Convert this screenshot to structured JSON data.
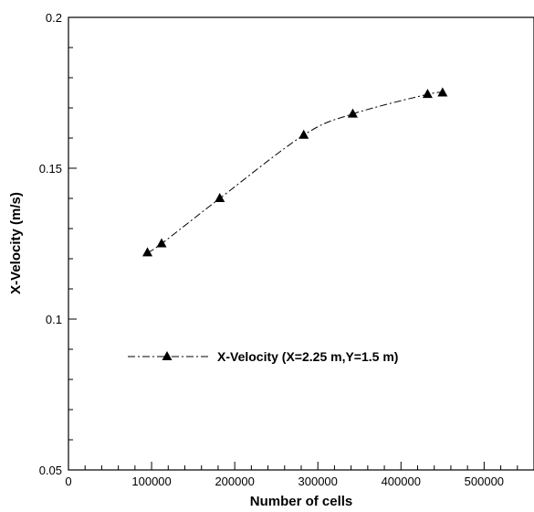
{
  "chart_data": {
    "type": "line",
    "title": "",
    "xlabel": "Number of cells",
    "ylabel": "X-Velocity (m/s)",
    "xlim": [
      0,
      560000
    ],
    "ylim": [
      0.05,
      0.2
    ],
    "x_ticks": [
      0,
      100000,
      200000,
      300000,
      400000,
      500000
    ],
    "x_tick_labels": [
      "0",
      "100000",
      "200000",
      "300000",
      "400000",
      "500000"
    ],
    "y_ticks": [
      0.05,
      0.1,
      0.15,
      0.2
    ],
    "y_tick_labels": [
      "0.05",
      "0.1",
      "0.15",
      "0.2"
    ],
    "grid": false,
    "legend_position": "left",
    "series": [
      {
        "name": "X-Velocity (X=2.25 m,Y=1.5 m)",
        "line_style": "dash-dot",
        "marker": "triangle",
        "color": "#000000",
        "x": [
          95000,
          112000,
          182000,
          283000,
          342000,
          432000,
          450000
        ],
        "y": [
          0.122,
          0.125,
          0.14,
          0.161,
          0.168,
          0.1745,
          0.175
        ]
      }
    ]
  }
}
